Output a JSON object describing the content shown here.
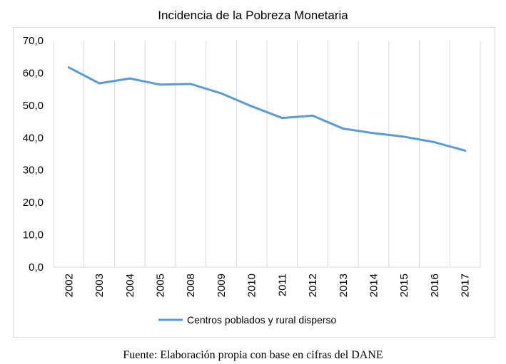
{
  "title": "Incidencia de la Pobreza Monetaria",
  "source_note": "Fuente: Elaboración propia con base en cifras del DANE",
  "colors": {
    "series": "#5b9bd5",
    "grid": "#d9d9d9",
    "frame": "#d9d9d9"
  },
  "chart_data": {
    "type": "line",
    "title": "Incidencia de la Pobreza Monetaria",
    "categories": [
      "2002",
      "2003",
      "2004",
      "2005",
      "2008",
      "2009",
      "2010",
      "2011",
      "2012",
      "2013",
      "2014",
      "2015",
      "2016",
      "2017"
    ],
    "series": [
      {
        "name": "Centros poblados y rural disperso",
        "values": [
          61.7,
          56.8,
          58.3,
          56.4,
          56.6,
          53.7,
          49.7,
          46.1,
          46.8,
          42.8,
          41.4,
          40.3,
          38.6,
          36.0
        ]
      }
    ],
    "yticks": [
      "0,0",
      "10,0",
      "20,0",
      "30,0",
      "40,0",
      "50,0",
      "60,0",
      "70,0"
    ],
    "ylim": [
      0,
      70
    ],
    "xlabel": "",
    "ylabel": "",
    "grid": "vertical",
    "legend_position": "bottom"
  }
}
